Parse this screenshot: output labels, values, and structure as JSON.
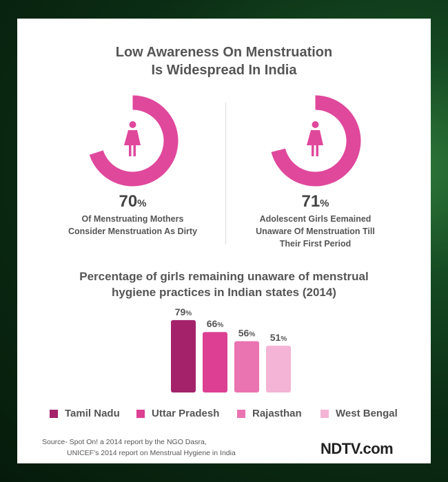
{
  "title_line1": "Low Awareness On Menstruation",
  "title_line2": "Is Widespread In India",
  "stats": [
    {
      "value": "70",
      "unit": "%",
      "desc_lines": [
        "Of Menstruating Mothers",
        "Consider Menstruation As Dirty"
      ],
      "fraction": 0.7,
      "icon": "woman-icon"
    },
    {
      "value": "71",
      "unit": "%",
      "desc_lines": [
        "Adolescent Girls Eemained",
        "Unaware Of Menstruation Till",
        "Their First Period"
      ],
      "fraction": 0.71,
      "icon": "woman-icon"
    }
  ],
  "chart_title_line1": "Percentage of girls remaining unaware of menstrual",
  "chart_title_line2": "hygiene practices in Indian states (2014)",
  "chart_data": {
    "type": "bar",
    "title": "Percentage of girls remaining unaware of menstrual hygiene practices in Indian states (2014)",
    "categories": [
      "Tamil Nadu",
      "Uttar Pradesh",
      "Rajasthan",
      "West Bengal"
    ],
    "values": [
      79,
      66,
      56,
      51
    ],
    "value_suffix": "%",
    "colors": [
      "#a3226a",
      "#dd3f93",
      "#ea73b1",
      "#f4b4d5"
    ],
    "ylim": [
      0,
      100
    ],
    "legend": "bottom"
  },
  "source_line1": "Source- Spot On! a 2014 report by the NGO Dasra,",
  "source_line2": "UNICEF's 2014 report on Menstrual Hygiene in India",
  "brand": "NDTV.com",
  "colors": {
    "accent": "#e0489c",
    "ring_track": "#ffffff",
    "text": "#555555"
  }
}
